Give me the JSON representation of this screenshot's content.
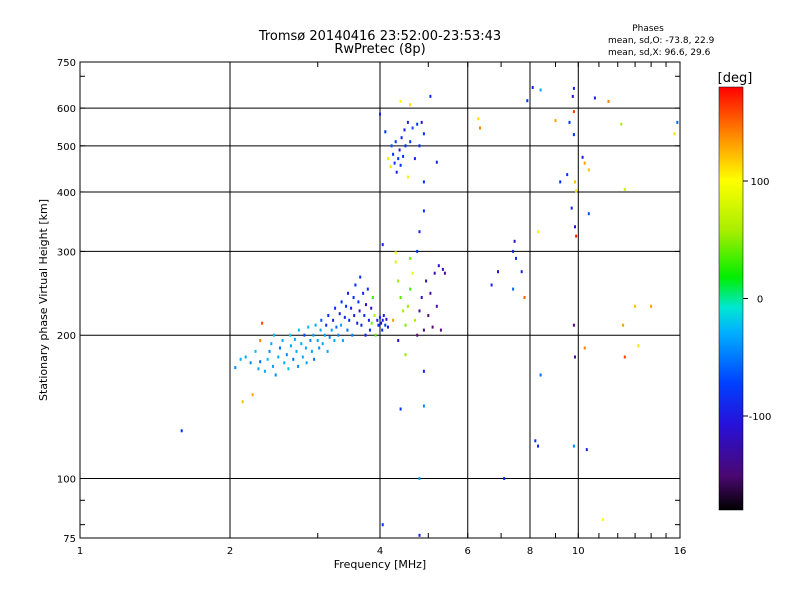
{
  "chart_data": {
    "type": "scatter",
    "title": "Tromsø 20140416 23:52:00-23:53:43",
    "subtitle": "RwPretec (8p)",
    "xlabel": "Frequency [MHz]",
    "ylabel": "Stationary phase Virtual Height [km]",
    "x_scale": "log",
    "y_scale": "log",
    "xlim": [
      1,
      16
    ],
    "ylim": [
      75,
      750
    ],
    "x_ticks": [
      1,
      2,
      4,
      6,
      8,
      10,
      16
    ],
    "x_tick_labels": [
      "1",
      "2",
      "4",
      "6",
      "8",
      "10",
      "16"
    ],
    "y_ticks": [
      75,
      100,
      200,
      300,
      400,
      500,
      600,
      750
    ],
    "y_tick_labels": [
      "75",
      "100",
      "200",
      "300",
      "400",
      "500",
      "600",
      "750"
    ],
    "grid": true,
    "vertical_lines": [
      4,
      6,
      8,
      10
    ],
    "stats_block": {
      "heading": "Phases",
      "line1": "mean, sd,O: -73.8, 22.9",
      "line2": "mean, sd,X:  96.6, 29.6"
    },
    "colorbar": {
      "label": "[deg]",
      "range": [
        -180,
        180
      ],
      "ticks": [
        100,
        0,
        -100
      ],
      "tick_labels": [
        "100",
        "0",
        "-100"
      ]
    },
    "colors": {
      "m180": "#000000",
      "m150": "#5a0a7a",
      "m120": "#2a10d0",
      "m100": "#0030ff",
      "m60": "#00a8ff",
      "m30": "#00e8e0",
      "0": "#00ee00",
      "60": "#b0ee00",
      "100": "#ffff00",
      "130": "#ffa000",
      "180": "#ff0000"
    },
    "points": [
      [
        1.6,
        126,
        -100
      ],
      [
        2.05,
        171,
        -70
      ],
      [
        2.1,
        178,
        -60
      ],
      [
        2.12,
        145,
        120
      ],
      [
        2.15,
        180,
        -60
      ],
      [
        2.2,
        175,
        -70
      ],
      [
        2.22,
        150,
        130
      ],
      [
        2.25,
        185,
        -50
      ],
      [
        2.28,
        170,
        -60
      ],
      [
        2.3,
        176,
        -80
      ],
      [
        2.3,
        195,
        140
      ],
      [
        2.32,
        212,
        160
      ],
      [
        2.35,
        168,
        -60
      ],
      [
        2.38,
        178,
        -50
      ],
      [
        2.4,
        185,
        -70
      ],
      [
        2.42,
        192,
        -60
      ],
      [
        2.44,
        172,
        -60
      ],
      [
        2.45,
        200,
        -50
      ],
      [
        2.47,
        165,
        -70
      ],
      [
        2.5,
        180,
        -60
      ],
      [
        2.52,
        188,
        -80
      ],
      [
        2.55,
        195,
        -60
      ],
      [
        2.57,
        175,
        -60
      ],
      [
        2.6,
        182,
        -70
      ],
      [
        2.62,
        170,
        -50
      ],
      [
        2.64,
        200,
        -40
      ],
      [
        2.65,
        190,
        -60
      ],
      [
        2.68,
        178,
        -80
      ],
      [
        2.7,
        196,
        -60
      ],
      [
        2.72,
        185,
        -60
      ],
      [
        2.74,
        172,
        -70
      ],
      [
        2.75,
        205,
        -50
      ],
      [
        2.78,
        192,
        -60
      ],
      [
        2.8,
        180,
        -60
      ],
      [
        2.82,
        200,
        -90
      ],
      [
        2.84,
        188,
        -60
      ],
      [
        2.85,
        175,
        -60
      ],
      [
        2.87,
        208,
        -50
      ],
      [
        2.9,
        195,
        -70
      ],
      [
        2.92,
        185,
        -60
      ],
      [
        2.94,
        200,
        -60
      ],
      [
        2.95,
        178,
        -80
      ],
      [
        2.97,
        210,
        -60
      ],
      [
        3.0,
        195,
        -60
      ],
      [
        3.02,
        188,
        -70
      ],
      [
        3.04,
        205,
        -60
      ],
      [
        3.05,
        215,
        -90
      ],
      [
        3.07,
        192,
        -60
      ],
      [
        3.1,
        200,
        -60
      ],
      [
        3.12,
        210,
        -100
      ],
      [
        3.14,
        185,
        -60
      ],
      [
        3.15,
        220,
        -100
      ],
      [
        3.17,
        198,
        -70
      ],
      [
        3.2,
        205,
        -60
      ],
      [
        3.22,
        215,
        -110
      ],
      [
        3.24,
        195,
        -60
      ],
      [
        3.25,
        228,
        -100
      ],
      [
        3.27,
        208,
        -80
      ],
      [
        3.3,
        200,
        -70
      ],
      [
        3.32,
        222,
        -110
      ],
      [
        3.34,
        210,
        -60
      ],
      [
        3.35,
        235,
        -100
      ],
      [
        3.37,
        195,
        -60
      ],
      [
        3.4,
        218,
        -110
      ],
      [
        3.42,
        230,
        -100
      ],
      [
        3.44,
        205,
        -80
      ],
      [
        3.45,
        245,
        -110
      ],
      [
        3.47,
        215,
        -100
      ],
      [
        3.5,
        228,
        -110
      ],
      [
        3.52,
        200,
        -70
      ],
      [
        3.54,
        240,
        -100
      ],
      [
        3.55,
        220,
        -110
      ],
      [
        3.57,
        255,
        -100
      ],
      [
        3.6,
        212,
        -110
      ],
      [
        3.62,
        235,
        -100
      ],
      [
        3.64,
        225,
        -120
      ],
      [
        3.65,
        265,
        -100
      ],
      [
        3.67,
        210,
        -110
      ],
      [
        3.7,
        245,
        -110
      ],
      [
        3.72,
        220,
        -100
      ],
      [
        3.74,
        200,
        -110
      ],
      [
        3.75,
        232,
        -120
      ],
      [
        3.78,
        250,
        -100
      ],
      [
        3.8,
        215,
        -110
      ],
      [
        3.82,
        205,
        -100
      ],
      [
        3.84,
        228,
        -120
      ],
      [
        3.85,
        212,
        40
      ],
      [
        3.87,
        240,
        20
      ],
      [
        3.9,
        220,
        60
      ],
      [
        3.92,
        200,
        30
      ],
      [
        3.95,
        215,
        -110
      ],
      [
        3.97,
        210,
        -100
      ],
      [
        4.0,
        218,
        -110
      ],
      [
        4.02,
        212,
        -120
      ],
      [
        4.04,
        205,
        -100
      ],
      [
        4.05,
        215,
        -110
      ],
      [
        4.07,
        220,
        -110
      ],
      [
        4.1,
        210,
        -100
      ],
      [
        4.12,
        216,
        -120
      ],
      [
        4.15,
        208,
        -110
      ],
      [
        4.05,
        310,
        -110
      ],
      [
        4.0,
        583,
        -110
      ],
      [
        4.1,
        535,
        -100
      ],
      [
        4.15,
        470,
        90
      ],
      [
        4.2,
        452,
        110
      ],
      [
        4.22,
        500,
        -90
      ],
      [
        4.25,
        480,
        -100
      ],
      [
        4.28,
        460,
        -100
      ],
      [
        4.3,
        510,
        -100
      ],
      [
        4.32,
        440,
        -110
      ],
      [
        4.35,
        470,
        -100
      ],
      [
        4.38,
        490,
        -120
      ],
      [
        4.4,
        455,
        -100
      ],
      [
        4.42,
        520,
        -110
      ],
      [
        4.45,
        475,
        -100
      ],
      [
        4.48,
        540,
        -110
      ],
      [
        4.5,
        500,
        -100
      ],
      [
        4.55,
        560,
        -110
      ],
      [
        4.6,
        510,
        -100
      ],
      [
        4.65,
        545,
        -90
      ],
      [
        4.7,
        470,
        -110
      ],
      [
        4.75,
        555,
        -100
      ],
      [
        4.8,
        500,
        -100
      ],
      [
        4.85,
        560,
        -120
      ],
      [
        4.9,
        530,
        -100
      ],
      [
        4.4,
        620,
        100
      ],
      [
        4.6,
        610,
        110
      ],
      [
        5.05,
        635,
        -100
      ],
      [
        4.9,
        420,
        -100
      ],
      [
        5.2,
        462,
        -110
      ],
      [
        4.55,
        430,
        90
      ],
      [
        4.3,
        285,
        80
      ],
      [
        4.35,
        260,
        50
      ],
      [
        4.4,
        240,
        30
      ],
      [
        4.45,
        225,
        60
      ],
      [
        4.5,
        210,
        40
      ],
      [
        4.55,
        230,
        50
      ],
      [
        4.6,
        250,
        20
      ],
      [
        4.65,
        270,
        90
      ],
      [
        4.7,
        215,
        60
      ],
      [
        4.75,
        200,
        -150
      ],
      [
        4.8,
        225,
        -140
      ],
      [
        4.85,
        240,
        -130
      ],
      [
        4.9,
        205,
        -140
      ],
      [
        4.95,
        260,
        -130
      ],
      [
        5.0,
        220,
        -150
      ],
      [
        5.05,
        245,
        -140
      ],
      [
        5.1,
        208,
        -150
      ],
      [
        5.15,
        270,
        -130
      ],
      [
        5.2,
        230,
        -140
      ],
      [
        5.25,
        280,
        -120
      ],
      [
        5.3,
        205,
        -150
      ],
      [
        5.35,
        275,
        -130
      ],
      [
        5.4,
        270,
        -140
      ],
      [
        4.3,
        298,
        100
      ],
      [
        4.6,
        290,
        40
      ],
      [
        4.25,
        215,
        130
      ],
      [
        4.35,
        195,
        -120
      ],
      [
        4.5,
        182,
        50
      ],
      [
        4.9,
        168,
        -110
      ],
      [
        4.8,
        100,
        -60
      ],
      [
        4.9,
        142,
        -70
      ],
      [
        4.4,
        140,
        -100
      ],
      [
        4.05,
        80,
        -100
      ],
      [
        4.8,
        76,
        -110
      ],
      [
        4.9,
        365,
        -100
      ],
      [
        4.8,
        330,
        -110
      ],
      [
        4.75,
        300,
        -100
      ],
      [
        6.3,
        570,
        110
      ],
      [
        6.35,
        545,
        140
      ],
      [
        6.7,
        255,
        -110
      ],
      [
        6.9,
        272,
        -120
      ],
      [
        7.1,
        100,
        -100
      ],
      [
        7.4,
        250,
        -80
      ],
      [
        7.5,
        290,
        -100
      ],
      [
        7.4,
        300,
        -110
      ],
      [
        7.45,
        315,
        -120
      ],
      [
        7.7,
        272,
        -110
      ],
      [
        7.8,
        240,
        150
      ],
      [
        7.9,
        622,
        -100
      ],
      [
        8.1,
        663,
        -110
      ],
      [
        8.4,
        655,
        -60
      ],
      [
        8.3,
        330,
        100
      ],
      [
        8.2,
        120,
        -100
      ],
      [
        8.3,
        117,
        -110
      ],
      [
        8.4,
        165,
        -80
      ],
      [
        9.0,
        565,
        130
      ],
      [
        9.2,
        420,
        -100
      ],
      [
        9.5,
        435,
        -100
      ],
      [
        9.6,
        560,
        -100
      ],
      [
        9.7,
        370,
        -110
      ],
      [
        9.8,
        660,
        -110
      ],
      [
        9.75,
        635,
        -120
      ],
      [
        9.8,
        590,
        160
      ],
      [
        9.8,
        528,
        -100
      ],
      [
        9.85,
        420,
        120
      ],
      [
        9.9,
        402,
        110
      ],
      [
        9.85,
        338,
        -120
      ],
      [
        9.9,
        323,
        170
      ],
      [
        9.8,
        210,
        -150
      ],
      [
        9.85,
        180,
        -140
      ],
      [
        9.8,
        117,
        -70
      ],
      [
        10.2,
        473,
        -110
      ],
      [
        10.5,
        445,
        120
      ],
      [
        10.3,
        460,
        130
      ],
      [
        10.5,
        360,
        -90
      ],
      [
        10.3,
        188,
        140
      ],
      [
        10.4,
        115,
        -110
      ],
      [
        10.8,
        630,
        -110
      ],
      [
        11.2,
        82,
        100
      ],
      [
        11.5,
        620,
        140
      ],
      [
        12.2,
        555,
        60
      ],
      [
        12.4,
        405,
        70
      ],
      [
        12.3,
        210,
        130
      ],
      [
        12.4,
        180,
        160
      ],
      [
        13.0,
        230,
        120
      ],
      [
        13.2,
        190,
        110
      ],
      [
        14.0,
        230,
        130
      ],
      [
        15.8,
        560,
        -80
      ],
      [
        15.6,
        530,
        110
      ]
    ]
  }
}
